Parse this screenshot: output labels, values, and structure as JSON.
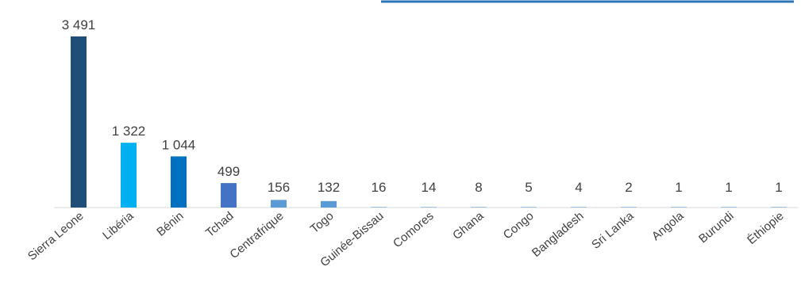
{
  "chart_data": {
    "type": "bar",
    "title": "",
    "xlabel": "",
    "ylabel": "",
    "categories": [
      "Sierra Leone",
      "Libéria",
      "Bénin",
      "Tchad",
      "Centrafrique",
      "Togo",
      "Guinée-Bissau",
      "Comores",
      "Ghana",
      "Congo",
      "Bangladesh",
      "Sri Lanka",
      "Angola",
      "Burundi",
      "Éthiopie"
    ],
    "values": [
      3491,
      1322,
      1044,
      499,
      156,
      132,
      16,
      14,
      8,
      5,
      4,
      2,
      1,
      1,
      1
    ],
    "value_labels": [
      "3 491",
      "1 322",
      "1 044",
      "499",
      "156",
      "132",
      "16",
      "14",
      "8",
      "5",
      "4",
      "2",
      "1",
      "1",
      "1"
    ],
    "colors": [
      "#1F4E79",
      "#00B0F0",
      "#0070C0",
      "#4472C4",
      "#5B9BD5",
      "#5B9BD5",
      "#9DC3E6",
      "#9DC3E6",
      "#9DC3E6",
      "#9DC3E6",
      "#9DC3E6",
      "#9DC3E6",
      "#9DC3E6",
      "#9DC3E6",
      "#9DC3E6"
    ],
    "ylim": [
      0,
      3491
    ],
    "grid": false,
    "legend": "none",
    "header_accent_color": "#2E75B6"
  }
}
